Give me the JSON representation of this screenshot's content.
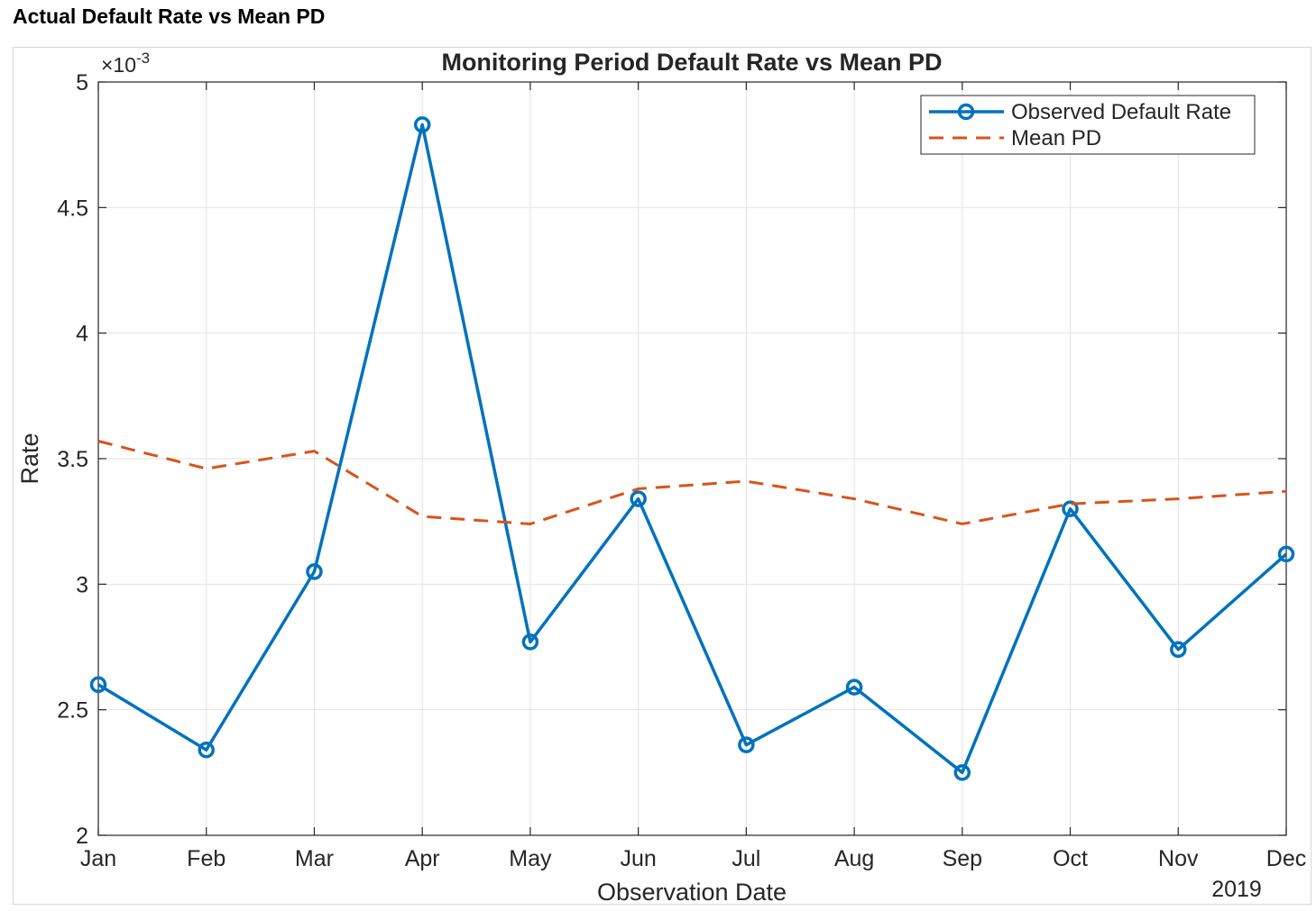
{
  "page": {
    "heading": "Actual Default Rate vs Mean PD"
  },
  "chart_data": {
    "type": "line",
    "title": "Monitoring Period Default Rate vs Mean PD",
    "xlabel": "Observation Date",
    "ylabel": "Rate",
    "x_secondary_label": "2019",
    "y_exponent_base": "×10",
    "y_exponent_power": "-3",
    "categories": [
      "Jan",
      "Feb",
      "Mar",
      "Apr",
      "May",
      "Jun",
      "Jul",
      "Aug",
      "Sep",
      "Oct",
      "Nov",
      "Dec"
    ],
    "ylim": [
      2,
      5
    ],
    "y_ticks": [
      2,
      2.5,
      3,
      3.5,
      4,
      4.5,
      5
    ],
    "y_tick_labels": [
      "2",
      "2.5",
      "3",
      "3.5",
      "4",
      "4.5",
      "5"
    ],
    "grid": true,
    "legend_position": "top-right",
    "series": [
      {
        "name": "Observed Default Rate",
        "style": "solid-circle-markers",
        "color": "#0072BD",
        "values": [
          2.6,
          2.34,
          3.05,
          4.83,
          2.77,
          3.34,
          2.36,
          2.59,
          2.25,
          3.3,
          2.74,
          3.12
        ]
      },
      {
        "name": "Mean PD",
        "style": "dashed",
        "color": "#D95319",
        "values": [
          3.57,
          3.46,
          3.53,
          3.27,
          3.24,
          3.38,
          3.41,
          3.34,
          3.24,
          3.32,
          3.34,
          3.37
        ]
      }
    ]
  }
}
